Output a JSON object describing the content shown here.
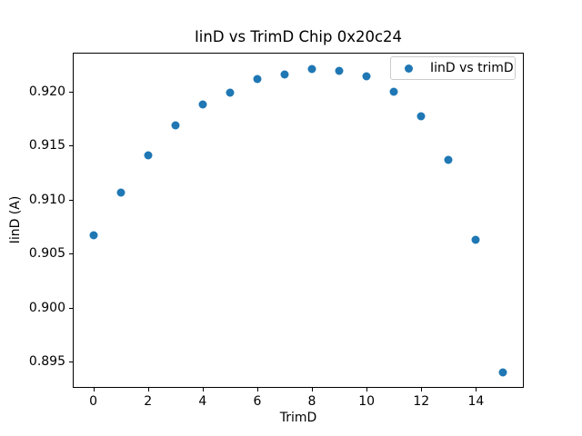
{
  "figure": {
    "background": "#ffffff",
    "text_color": "#000000",
    "spine_color": "#000000",
    "legend_border_color": "#cccccc"
  },
  "chart_data": {
    "type": "scatter",
    "title": "IinD vs TrimD Chip 0x20c24",
    "xlabel": "TrimD",
    "ylabel": "IinD (A)",
    "grid": false,
    "xlim": [
      -0.75,
      15.75
    ],
    "ylim": [
      0.8926,
      0.9236
    ],
    "xticks": [
      "0",
      "2",
      "4",
      "6",
      "8",
      "10",
      "12",
      "14"
    ],
    "xtick_values": [
      0,
      2,
      4,
      6,
      8,
      10,
      12,
      14
    ],
    "yticks": [
      "0.895",
      "0.900",
      "0.905",
      "0.910",
      "0.915",
      "0.920"
    ],
    "ytick_values": [
      0.895,
      0.9,
      0.905,
      0.91,
      0.915,
      0.92
    ],
    "legend": {
      "position": "upper right",
      "entries": [
        "IinD vs trimD"
      ]
    },
    "series": [
      {
        "name": "IinD vs trimD",
        "marker": "circle",
        "color": "#1f77b4",
        "x": [
          0,
          1,
          2,
          3,
          4,
          5,
          6,
          7,
          8,
          9,
          10,
          11,
          12,
          13,
          14,
          15
        ],
        "y": [
          0.9067,
          0.9107,
          0.9141,
          0.9169,
          0.9188,
          0.9199,
          0.9212,
          0.9216,
          0.9221,
          0.9219,
          0.9214,
          0.92,
          0.9177,
          0.9137,
          0.9063,
          0.894
        ]
      }
    ]
  }
}
